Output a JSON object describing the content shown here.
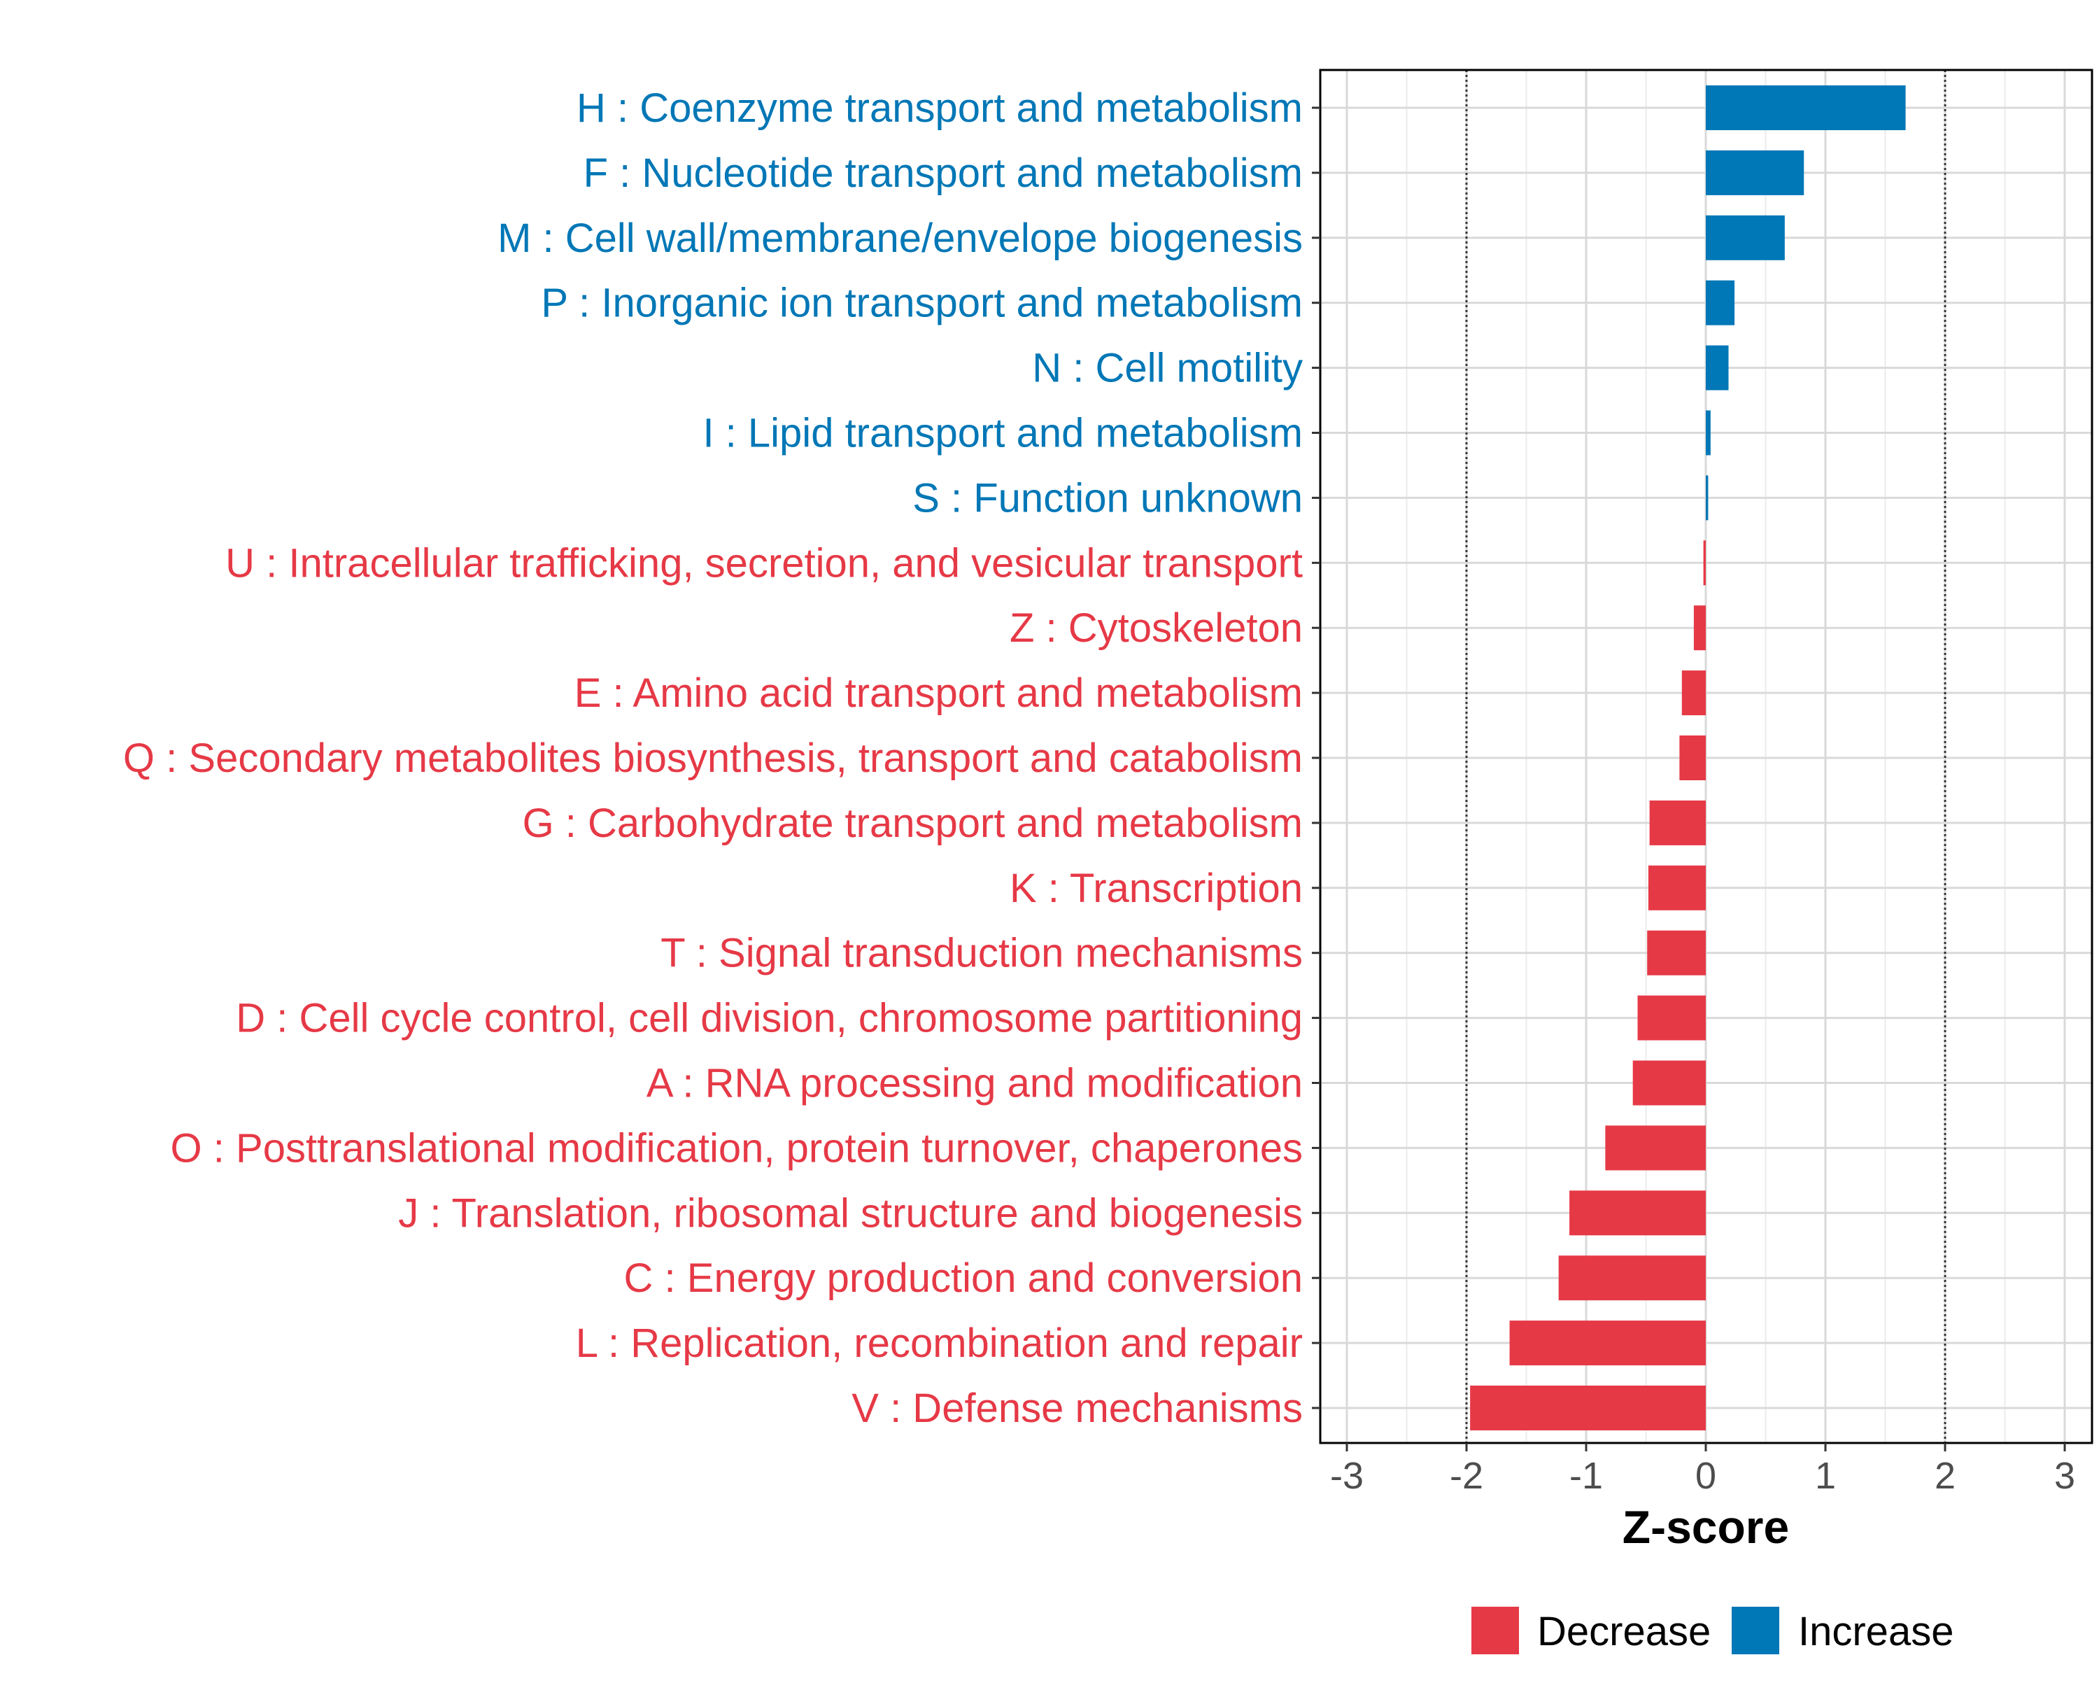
{
  "chart_data": {
    "type": "bar",
    "orientation": "horizontal",
    "xlabel": "Z-score",
    "xlim": [
      -3.25,
      3.25
    ],
    "xticks": [
      -3,
      -2,
      -1,
      0,
      1,
      2,
      3
    ],
    "reference_lines": [
      -2,
      2
    ],
    "grid": true,
    "legend_position": "bottom",
    "legend": [
      {
        "label": "Decrease",
        "color": "#E63946"
      },
      {
        "label": "Increase",
        "color": "#0077B6"
      }
    ],
    "categories": [
      {
        "label": "H : Coenzyme transport and metabolism",
        "value": 1.67,
        "direction": "Increase"
      },
      {
        "label": "F : Nucleotide transport and metabolism",
        "value": 0.82,
        "direction": "Increase"
      },
      {
        "label": "M : Cell wall/membrane/envelope biogenesis",
        "value": 0.66,
        "direction": "Increase"
      },
      {
        "label": "P : Inorganic ion transport and metabolism",
        "value": 0.24,
        "direction": "Increase"
      },
      {
        "label": "N : Cell motility",
        "value": 0.19,
        "direction": "Increase"
      },
      {
        "label": "I : Lipid transport and metabolism",
        "value": 0.04,
        "direction": "Increase"
      },
      {
        "label": "S : Function unknown",
        "value": 0.02,
        "direction": "Increase"
      },
      {
        "label": "U : Intracellular trafficking, secretion, and vesicular transport",
        "value": -0.02,
        "direction": "Decrease"
      },
      {
        "label": "Z : Cytoskeleton",
        "value": -0.1,
        "direction": "Decrease"
      },
      {
        "label": "E : Amino acid transport and metabolism",
        "value": -0.2,
        "direction": "Decrease"
      },
      {
        "label": "Q : Secondary metabolites biosynthesis, transport and catabolism",
        "value": -0.22,
        "direction": "Decrease"
      },
      {
        "label": "G : Carbohydrate transport and metabolism",
        "value": -0.47,
        "direction": "Decrease"
      },
      {
        "label": "K : Transcription",
        "value": -0.48,
        "direction": "Decrease"
      },
      {
        "label": "T : Signal transduction mechanisms",
        "value": -0.49,
        "direction": "Decrease"
      },
      {
        "label": "D : Cell cycle control, cell division, chromosome partitioning",
        "value": -0.57,
        "direction": "Decrease"
      },
      {
        "label": "A : RNA processing and modification",
        "value": -0.61,
        "direction": "Decrease"
      },
      {
        "label": "O : Posttranslational modification, protein turnover, chaperones",
        "value": -0.84,
        "direction": "Decrease"
      },
      {
        "label": "J : Translation, ribosomal structure and biogenesis",
        "value": -1.14,
        "direction": "Decrease"
      },
      {
        "label": "C : Energy production and conversion",
        "value": -1.23,
        "direction": "Decrease"
      },
      {
        "label": "L : Replication, recombination and repair",
        "value": -1.64,
        "direction": "Decrease"
      },
      {
        "label": "V : Defense mechanisms",
        "value": -1.97,
        "direction": "Decrease"
      }
    ]
  }
}
